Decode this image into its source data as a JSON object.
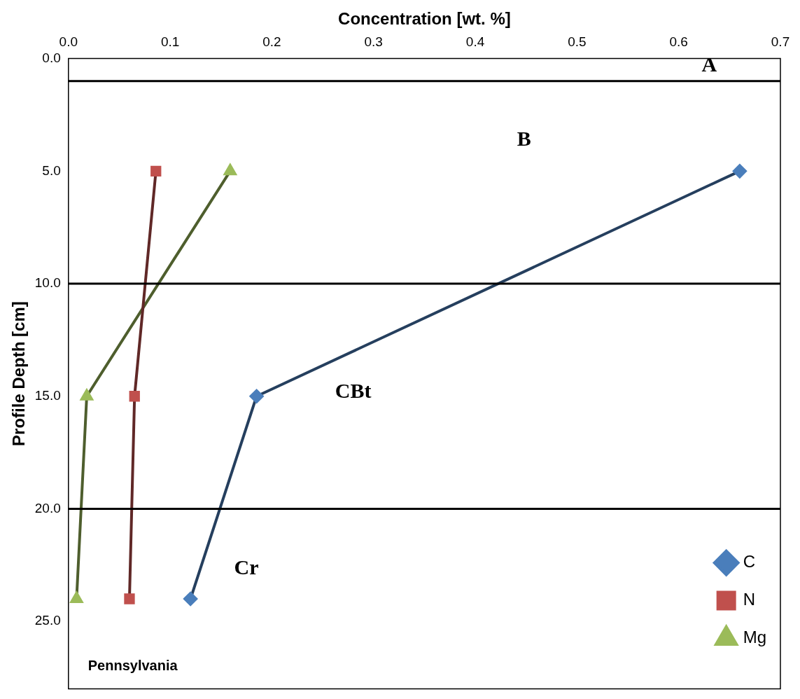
{
  "chart_data": {
    "type": "line",
    "xlabel": "Concentration [wt. %]",
    "ylabel": "Profile Depth [cm]",
    "xlim": [
      0,
      0.7
    ],
    "xticks": [
      {
        "value": 0,
        "label": "0.0"
      },
      0.1,
      0.2,
      0.3,
      0.4,
      0.5,
      0.6,
      0.7
    ],
    "ylim": [
      28,
      0
    ],
    "yticks": [
      {
        "value": 0,
        "label": "0.0"
      },
      {
        "value": 5,
        "label": "5.0"
      },
      {
        "value": 10,
        "label": "10.0"
      },
      {
        "value": 15,
        "label": "15.0"
      },
      {
        "value": 20,
        "label": "20.0"
      },
      {
        "value": 25,
        "label": "25.0"
      }
    ],
    "grid": false,
    "legend": "bottom right",
    "line_style": "solid",
    "series": [
      {
        "name": "C",
        "color": "#4a7ebb",
        "marker": "diamond",
        "x": [
          0.66,
          0.185,
          0.12
        ],
        "values": [
          5,
          15,
          24
        ]
      },
      {
        "name": "N",
        "color": "#c0504d",
        "marker": "square",
        "x": [
          0.086,
          0.065,
          0.06
        ],
        "values": [
          5,
          15,
          24
        ]
      },
      {
        "name": "Mg",
        "color": "#9bbb59",
        "marker": "triangle",
        "x": [
          0.159,
          0.018,
          0.008
        ],
        "values": [
          5,
          15,
          24
        ]
      }
    ],
    "ref_lines": [
      {
        "axis": "y",
        "value": 1,
        "color": "#000000"
      },
      {
        "axis": "y",
        "value": 10,
        "color": "#000000"
      },
      {
        "axis": "y",
        "value": 20,
        "color": "#000000"
      }
    ],
    "annotations": [
      "A",
      "B",
      "CBt",
      "Cr",
      "Pennsylvania"
    ]
  }
}
